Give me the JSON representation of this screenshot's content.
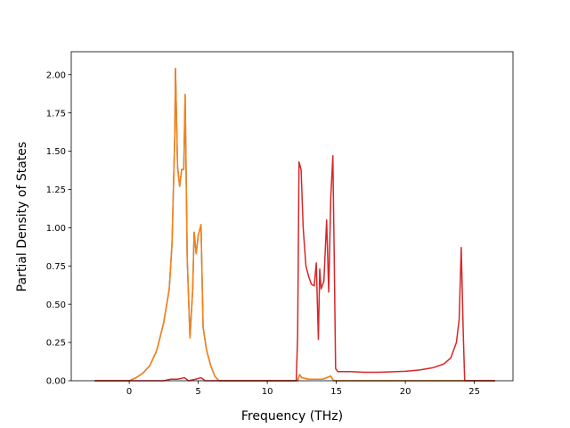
{
  "chart_data": {
    "type": "line",
    "xlabel": "Frequency (THz)",
    "ylabel": "Partial Density of States",
    "xlim": [
      -4.2,
      27.8
    ],
    "ylim": [
      0.0,
      2.15
    ],
    "x_ticks": [
      0,
      5,
      10,
      15,
      20,
      25
    ],
    "y_ticks": [
      0.0,
      0.25,
      0.5,
      0.75,
      1.0,
      1.25,
      1.5,
      1.75,
      2.0
    ],
    "x_tick_labels": [
      "0",
      "5",
      "10",
      "15",
      "20",
      "25"
    ],
    "y_tick_labels": [
      "0.00",
      "0.25",
      "0.50",
      "0.75",
      "1.00",
      "1.25",
      "1.50",
      "1.75",
      "2.00"
    ],
    "grid": false,
    "legend": "none",
    "series": [
      {
        "color": "#1f77b4",
        "points": [
          [
            -2.5,
            0
          ],
          [
            0.0,
            0.0
          ],
          [
            0.5,
            0.02
          ],
          [
            1.0,
            0.05
          ],
          [
            1.5,
            0.1
          ],
          [
            2.0,
            0.2
          ],
          [
            2.5,
            0.38
          ],
          [
            2.9,
            0.6
          ],
          [
            3.1,
            0.9
          ],
          [
            3.3,
            1.6
          ],
          [
            3.35,
            2.04
          ],
          [
            3.5,
            1.4
          ],
          [
            3.65,
            1.27
          ],
          [
            3.8,
            1.38
          ],
          [
            3.95,
            1.38
          ],
          [
            4.05,
            1.87
          ],
          [
            4.2,
            0.8
          ],
          [
            4.4,
            0.28
          ],
          [
            4.6,
            0.6
          ],
          [
            4.7,
            0.97
          ],
          [
            4.85,
            0.83
          ],
          [
            5.0,
            0.95
          ],
          [
            5.2,
            1.02
          ],
          [
            5.35,
            0.35
          ],
          [
            5.6,
            0.2
          ],
          [
            5.9,
            0.1
          ],
          [
            6.2,
            0.03
          ],
          [
            6.5,
            0.0
          ],
          [
            12.2,
            0.0
          ],
          [
            12.35,
            0.04
          ],
          [
            12.5,
            0.02
          ],
          [
            13.0,
            0.01
          ],
          [
            14.0,
            0.01
          ],
          [
            14.6,
            0.03
          ],
          [
            14.8,
            0.0
          ],
          [
            26.5,
            0.0
          ]
        ]
      },
      {
        "color": "#ff7f0e",
        "points": [
          [
            -2.5,
            0
          ],
          [
            0.0,
            0.0
          ],
          [
            0.5,
            0.02
          ],
          [
            1.0,
            0.05
          ],
          [
            1.5,
            0.1
          ],
          [
            2.0,
            0.2
          ],
          [
            2.5,
            0.38
          ],
          [
            2.9,
            0.6
          ],
          [
            3.1,
            0.9
          ],
          [
            3.3,
            1.6
          ],
          [
            3.35,
            2.04
          ],
          [
            3.5,
            1.4
          ],
          [
            3.65,
            1.27
          ],
          [
            3.8,
            1.38
          ],
          [
            3.95,
            1.38
          ],
          [
            4.05,
            1.87
          ],
          [
            4.2,
            0.8
          ],
          [
            4.4,
            0.28
          ],
          [
            4.6,
            0.6
          ],
          [
            4.7,
            0.97
          ],
          [
            4.85,
            0.83
          ],
          [
            5.0,
            0.95
          ],
          [
            5.2,
            1.02
          ],
          [
            5.35,
            0.35
          ],
          [
            5.6,
            0.2
          ],
          [
            5.9,
            0.1
          ],
          [
            6.2,
            0.03
          ],
          [
            6.5,
            0.0
          ],
          [
            12.2,
            0.0
          ],
          [
            12.35,
            0.04
          ],
          [
            12.5,
            0.02
          ],
          [
            13.0,
            0.01
          ],
          [
            14.0,
            0.01
          ],
          [
            14.6,
            0.03
          ],
          [
            14.8,
            0.0
          ],
          [
            26.5,
            0.0
          ]
        ]
      },
      {
        "color": "#d62728",
        "points": [
          [
            -2.5,
            0
          ],
          [
            2.5,
            0.0
          ],
          [
            3.0,
            0.01
          ],
          [
            3.5,
            0.01
          ],
          [
            4.0,
            0.02
          ],
          [
            4.3,
            0.0
          ],
          [
            4.8,
            0.01
          ],
          [
            5.2,
            0.02
          ],
          [
            5.5,
            0.0
          ],
          [
            12.1,
            0.0
          ],
          [
            12.2,
            0.3
          ],
          [
            12.3,
            1.43
          ],
          [
            12.45,
            1.38
          ],
          [
            12.6,
            1.0
          ],
          [
            12.8,
            0.75
          ],
          [
            13.0,
            0.68
          ],
          [
            13.2,
            0.63
          ],
          [
            13.4,
            0.62
          ],
          [
            13.55,
            0.77
          ],
          [
            13.7,
            0.27
          ],
          [
            13.8,
            0.73
          ],
          [
            13.9,
            0.6
          ],
          [
            14.1,
            0.65
          ],
          [
            14.3,
            1.05
          ],
          [
            14.45,
            0.58
          ],
          [
            14.6,
            1.2
          ],
          [
            14.75,
            1.47
          ],
          [
            14.85,
            0.8
          ],
          [
            14.95,
            0.08
          ],
          [
            15.1,
            0.06
          ],
          [
            16.0,
            0.06
          ],
          [
            17.0,
            0.055
          ],
          [
            18.0,
            0.055
          ],
          [
            19.0,
            0.058
          ],
          [
            20.0,
            0.062
          ],
          [
            21.0,
            0.07
          ],
          [
            22.0,
            0.085
          ],
          [
            22.8,
            0.11
          ],
          [
            23.3,
            0.15
          ],
          [
            23.7,
            0.25
          ],
          [
            23.9,
            0.4
          ],
          [
            24.05,
            0.87
          ],
          [
            24.2,
            0.3
          ],
          [
            24.3,
            0.0
          ],
          [
            26.5,
            0.0
          ]
        ]
      }
    ]
  }
}
